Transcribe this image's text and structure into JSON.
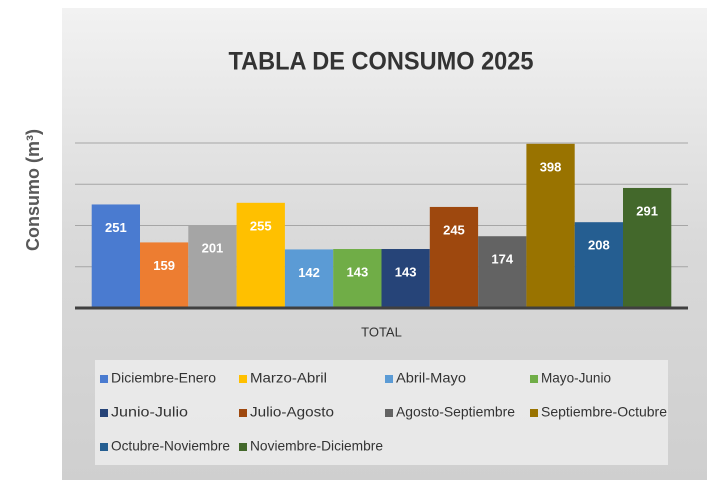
{
  "chart_data": {
    "type": "bar",
    "title": "TABLA DE CONSUMO 2025",
    "y_label": "Consumo (m³)",
    "categories": [
      "TOTAL"
    ],
    "series": [
      {
        "name": "Diciembre-Enero",
        "color": "#4a7bd0",
        "values": [
          251
        ]
      },
      {
        "color": "#ed7d31",
        "values": [
          159
        ]
      },
      {
        "color": "#a5a5a5",
        "values": [
          201
        ]
      },
      {
        "name": "Marzo-Abril",
        "color": "#ffc000",
        "values": [
          255
        ]
      },
      {
        "name": "Abril-Mayo",
        "color": "#5b9bd5",
        "values": [
          142
        ]
      },
      {
        "name": "Mayo-Junio",
        "color": "#70ad47",
        "values": [
          143
        ]
      },
      {
        "name": "Junio-Julio",
        "color": "#264478",
        "values": [
          143
        ]
      },
      {
        "name": "Julio-Agosto",
        "color": "#9e480e",
        "values": [
          245
        ]
      },
      {
        "name": "Agosto-Septiembre",
        "color": "#636363",
        "values": [
          174
        ]
      },
      {
        "name": "Septiembre-Octubre",
        "color": "#997300",
        "values": [
          398
        ]
      },
      {
        "name": "Octubre-Noviembre",
        "color": "#255e91",
        "values": [
          208
        ]
      },
      {
        "name": "Noviembre-Diciembre",
        "color": "#43682b",
        "values": [
          291
        ]
      }
    ],
    "ylim": [
      0,
      400
    ],
    "yticks": [
      0,
      100,
      200,
      300,
      400
    ],
    "grid": true,
    "show_ytick_labels": false,
    "legend": "bottom"
  }
}
